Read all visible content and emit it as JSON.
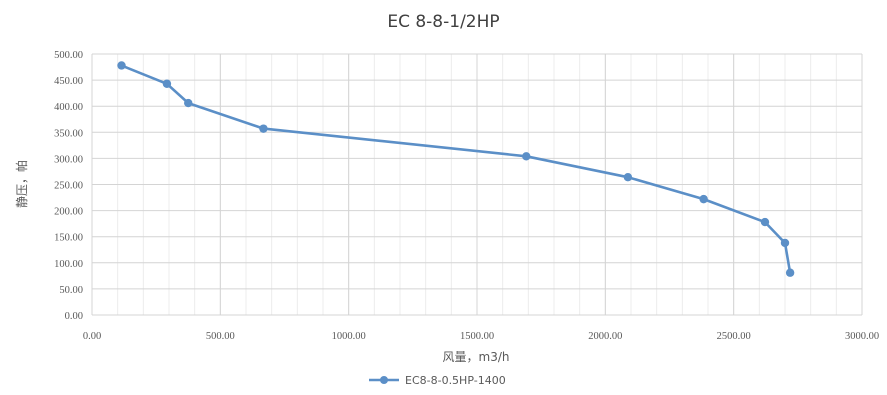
{
  "chart_data": {
    "type": "line",
    "title": "EC 8-8-1/2HP",
    "xlabel": "风量，m3/h",
    "ylabel": "静压，帕",
    "xlim": [
      0,
      3000
    ],
    "ylim": [
      0,
      500
    ],
    "x_ticks": [
      "0.00",
      "500.00",
      "1000.00",
      "1500.00",
      "2000.00",
      "2500.00",
      "3000.00"
    ],
    "y_ticks": [
      "0.00",
      "50.00",
      "100.00",
      "150.00",
      "200.00",
      "250.00",
      "300.00",
      "350.00",
      "400.00",
      "450.00",
      "500.00"
    ],
    "grid": true,
    "legend_position": "bottom",
    "series": [
      {
        "name": "EC8-8-0.5HP-1400",
        "color": "#5B8FC7",
        "points": [
          [
            115,
            478
          ],
          [
            292,
            443
          ],
          [
            375,
            406
          ],
          [
            668,
            357
          ],
          [
            1692,
            304
          ],
          [
            2088,
            264
          ],
          [
            2383,
            222
          ],
          [
            2622,
            178
          ],
          [
            2700,
            138
          ],
          [
            2720,
            81
          ]
        ]
      }
    ]
  }
}
